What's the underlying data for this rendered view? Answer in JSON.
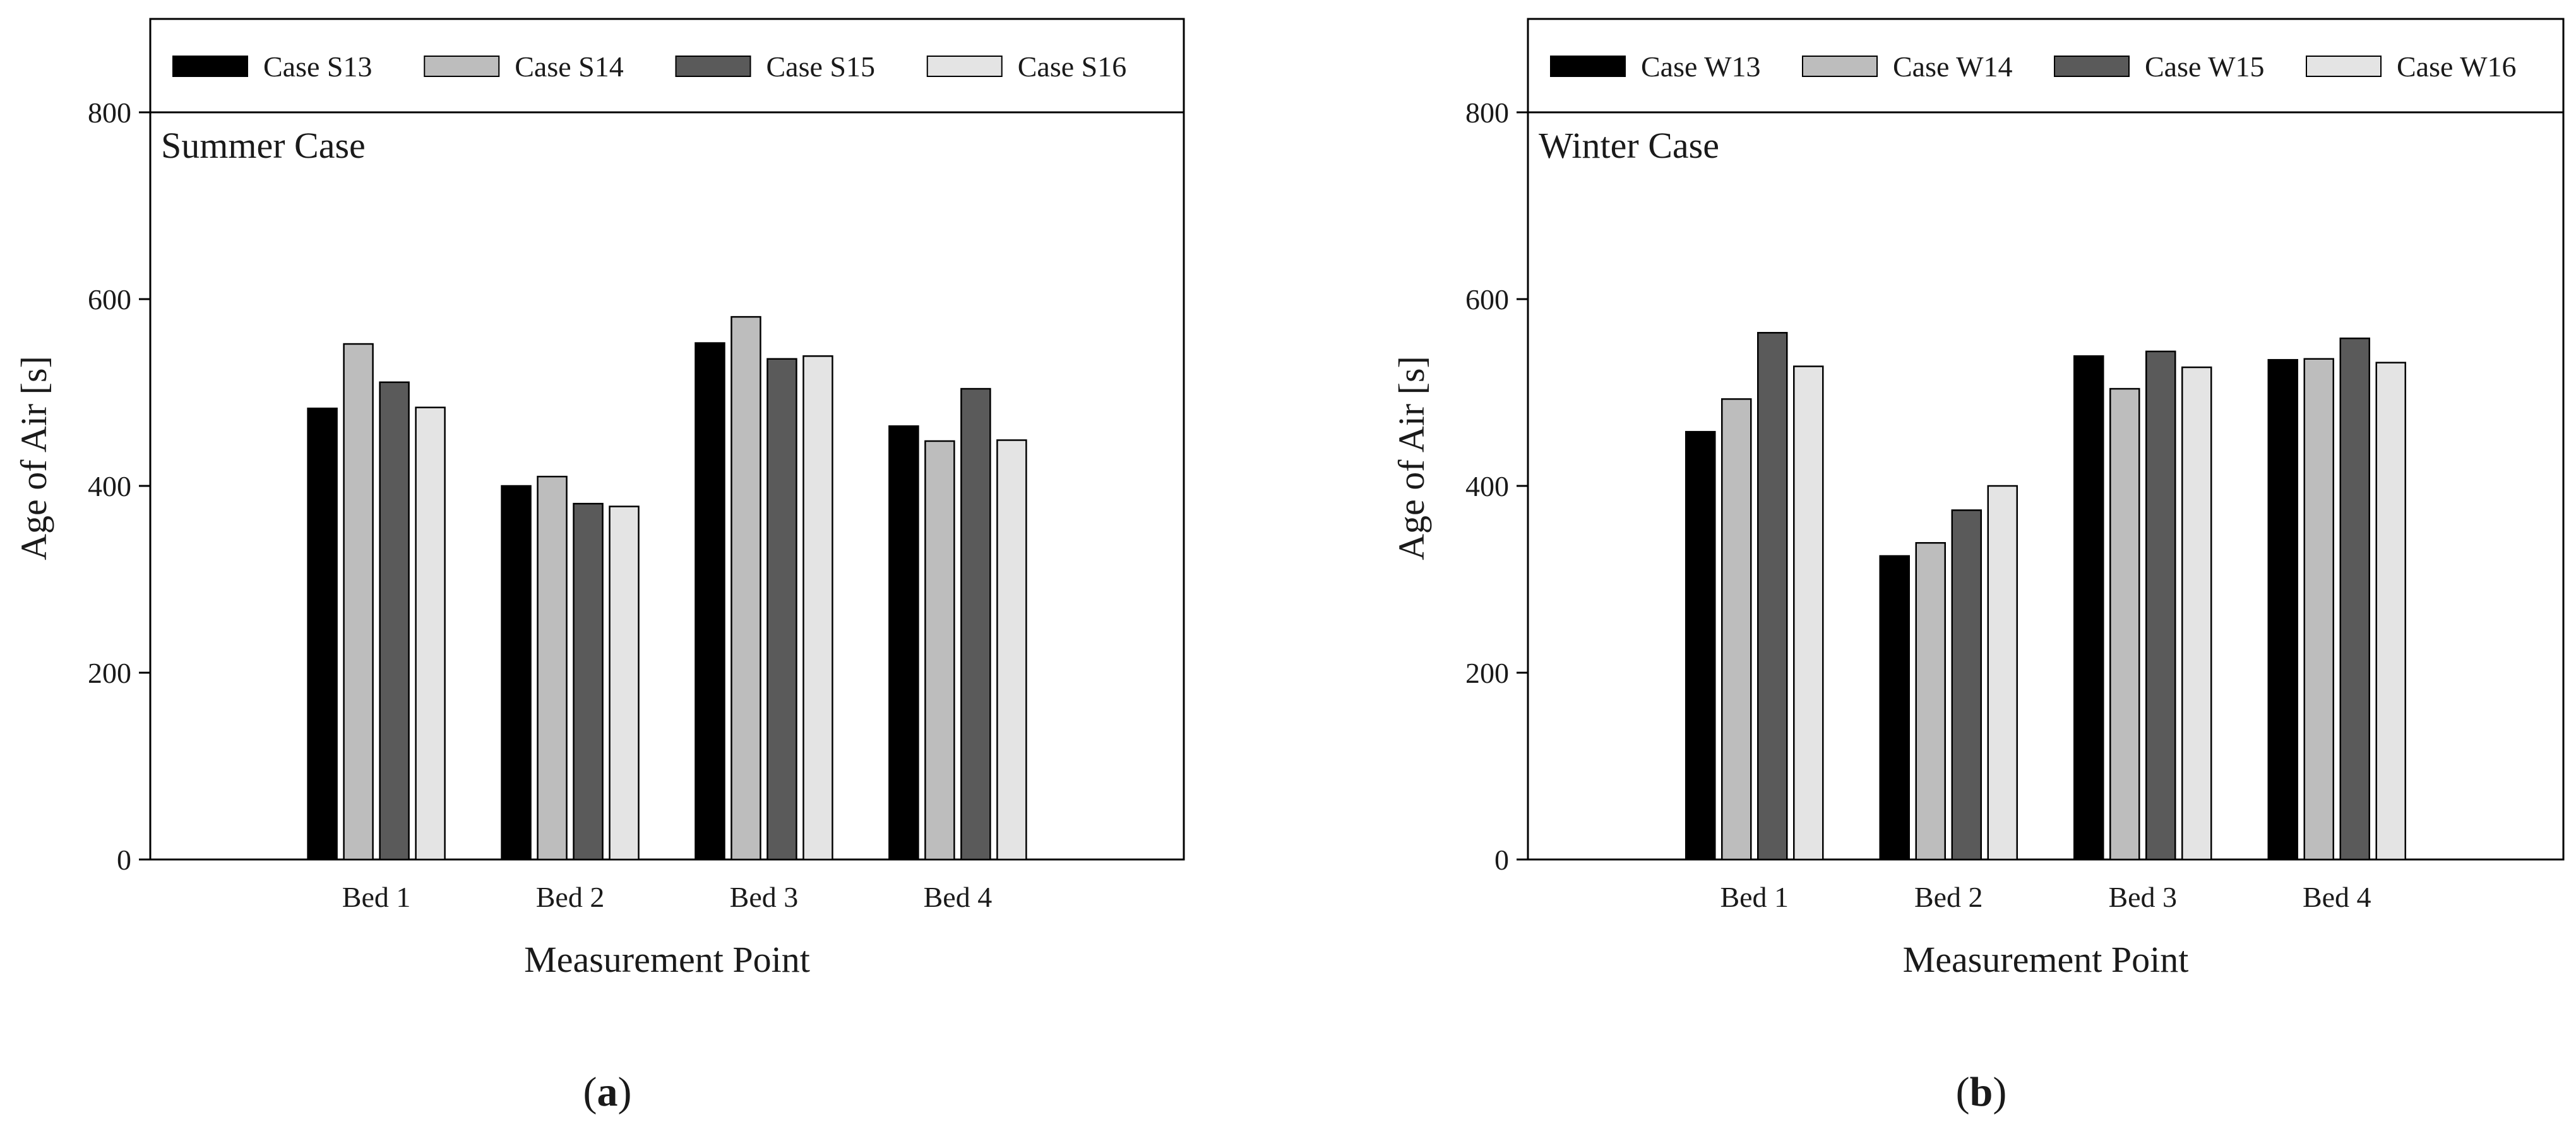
{
  "chart_data": [
    {
      "type": "bar",
      "panel_label": {
        "open": "(",
        "letter": "a",
        "close": ")"
      },
      "annotation": "Summer Case",
      "title": "",
      "xlabel": "Measurement Point",
      "ylabel": "Age of Air [s]",
      "categories": [
        "Bed 1",
        "Bed 2",
        "Bed 3",
        "Bed 4"
      ],
      "ylim": [
        0,
        900
      ],
      "yticks": [
        0,
        200,
        400,
        600,
        800
      ],
      "legend_position": "top",
      "series": [
        {
          "name": "Case S13",
          "color": "#000000",
          "values": [
            483,
            400,
            553,
            464
          ]
        },
        {
          "name": "Case S14",
          "color": "#bdbdbd",
          "values": [
            552,
            410,
            581,
            448
          ]
        },
        {
          "name": "Case S15",
          "color": "#5a5a5a",
          "values": [
            511,
            381,
            536,
            504
          ]
        },
        {
          "name": "Case S16",
          "color": "#e4e4e4",
          "values": [
            484,
            378,
            539,
            449
          ]
        }
      ]
    },
    {
      "type": "bar",
      "panel_label": {
        "open": "(",
        "letter": "b",
        "close": ")"
      },
      "annotation": "Winter Case",
      "title": "",
      "xlabel": "Measurement Point",
      "ylabel": "Age of Air [s]",
      "categories": [
        "Bed 1",
        "Bed 2",
        "Bed 3",
        "Bed 4"
      ],
      "ylim": [
        0,
        900
      ],
      "yticks": [
        0,
        200,
        400,
        600,
        800
      ],
      "legend_position": "top",
      "series": [
        {
          "name": "Case W13",
          "color": "#000000",
          "values": [
            458,
            325,
            539,
            535
          ]
        },
        {
          "name": "Case W14",
          "color": "#bdbdbd",
          "values": [
            493,
            339,
            504,
            536
          ]
        },
        {
          "name": "Case W15",
          "color": "#5a5a5a",
          "values": [
            564,
            374,
            544,
            558
          ]
        },
        {
          "name": "Case W16",
          "color": "#e4e4e4",
          "values": [
            528,
            400,
            527,
            532
          ]
        }
      ]
    }
  ]
}
